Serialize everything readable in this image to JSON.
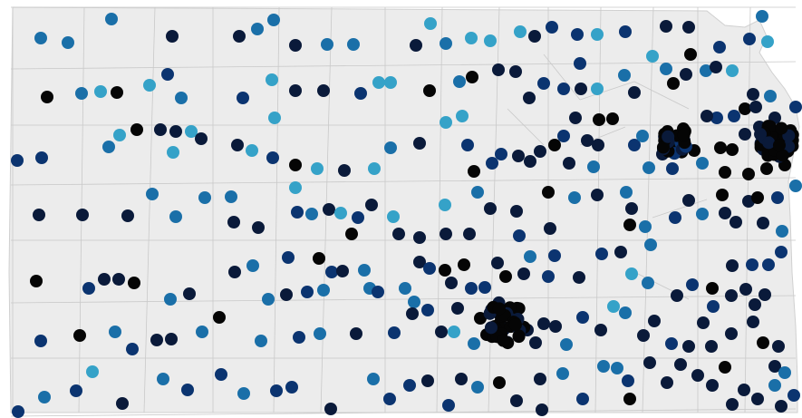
{
  "map": {
    "region": "Kansas",
    "style": "county outlines with point markers",
    "colors": {
      "background": "#ffffff",
      "land": "#ececec",
      "county_lines": "#c9c9c9",
      "marker_levels": [
        "#35a2c8",
        "#1a6fa8",
        "#0b3470",
        "#0a1a3a",
        "#050505"
      ]
    },
    "marker_level_counts": {
      "level_1_light_blue": "many",
      "level_2_medium_blue": "many",
      "level_3_navy": "many",
      "level_4_dark_navy": "many",
      "level_5_black": "many"
    }
  }
}
